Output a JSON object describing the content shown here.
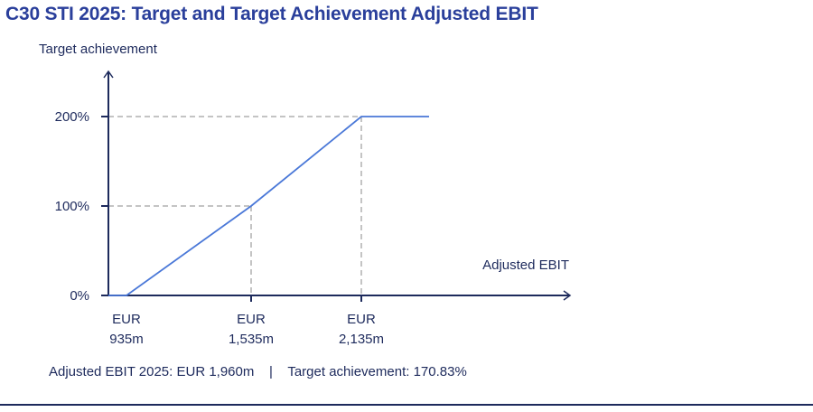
{
  "title": "C30  STI 2025: Target and Target Achievement Adjusted EBIT",
  "chart_data": {
    "type": "line",
    "ylabel": "Target achievement",
    "xlabel": "Adjusted EBIT",
    "y_ticks": [
      {
        "value": 0,
        "label": "0%"
      },
      {
        "value": 100,
        "label": "100%"
      },
      {
        "value": 200,
        "label": "200%"
      }
    ],
    "x_ticks": [
      {
        "value": 935,
        "label_top": "EUR",
        "label_bottom": "935m"
      },
      {
        "value": 1535,
        "label_top": "EUR",
        "label_bottom": "1,535m"
      },
      {
        "value": 2135,
        "label_top": "EUR",
        "label_bottom": "2,135m"
      }
    ],
    "series": [
      {
        "points": [
          {
            "x": 935,
            "y": 0
          },
          {
            "x": 1535,
            "y": 100
          },
          {
            "x": 2135,
            "y": 200
          }
        ]
      }
    ],
    "reference_lines": "dashed guides at 100% and 200%",
    "grid": false,
    "colors": {
      "line": "#4a78d8",
      "axis": "#1d2a5c",
      "guide": "#b0b0b0"
    }
  },
  "footer": {
    "ebit": "Adjusted EBIT 2025: EUR 1,960m",
    "separator": "|",
    "achievement": "Target achievement: 170.83%"
  }
}
